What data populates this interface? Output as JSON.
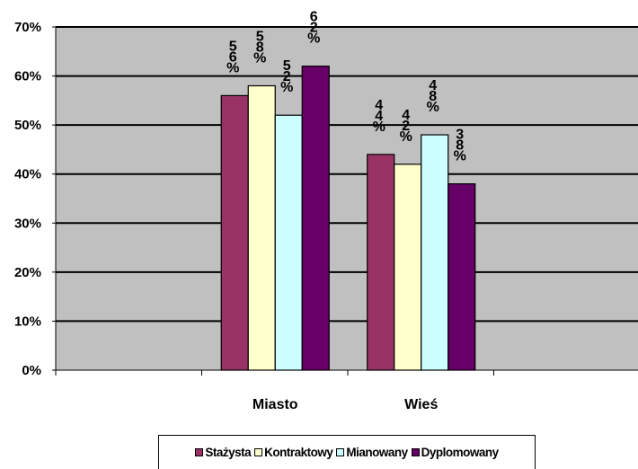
{
  "chart_data": {
    "type": "bar",
    "categories": [
      "Miasto",
      "Wieś"
    ],
    "series": [
      {
        "name": "Stażysta",
        "values": [
          56,
          44
        ],
        "labels": [
          "5\n6\n%",
          "4\n4\n%"
        ],
        "color": "#993366"
      },
      {
        "name": "Kontraktowy",
        "values": [
          58,
          42
        ],
        "labels": [
          "5\n8\n%",
          "4\n2\n%"
        ],
        "color": "#FFFFCC"
      },
      {
        "name": "Mianowany",
        "values": [
          52,
          48
        ],
        "labels": [
          "5\n2\n%",
          "4\n8\n%"
        ],
        "color": "#CCFFFF"
      },
      {
        "name": "Dyplomowany",
        "values": [
          62,
          38
        ],
        "labels": [
          "6\n2\n%",
          "3\n8\n%"
        ],
        "color": "#660066"
      }
    ],
    "ylim": [
      0,
      70
    ],
    "yticks": [
      "0%",
      "10%",
      "20%",
      "30%",
      "40%",
      "50%",
      "60%",
      "70%"
    ],
    "grid": true,
    "legend_position": "bottom",
    "plot_background": "#C0C0C0"
  }
}
